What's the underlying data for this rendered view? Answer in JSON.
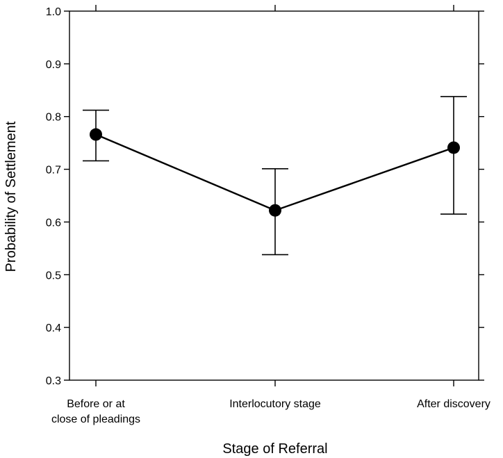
{
  "chart_data": {
    "type": "line",
    "xlabel": "Stage of Referral",
    "ylabel": "Probability of Settlement",
    "categories": [
      [
        "Before or at",
        "close of pleadings"
      ],
      [
        "Interlocutory stage"
      ],
      [
        "After discovery"
      ]
    ],
    "values": [
      0.766,
      0.622,
      0.741
    ],
    "error_low": [
      0.716,
      0.538,
      0.615
    ],
    "error_high": [
      0.812,
      0.701,
      0.838
    ],
    "ylim": [
      0.3,
      1.0
    ],
    "yticks": [
      "0.3",
      "0.4",
      "0.5",
      "0.6",
      "0.7",
      "0.8",
      "0.9",
      "1.0"
    ],
    "grid": false,
    "legend": "none",
    "marker": "filled-circle",
    "line_color": "#000000"
  }
}
